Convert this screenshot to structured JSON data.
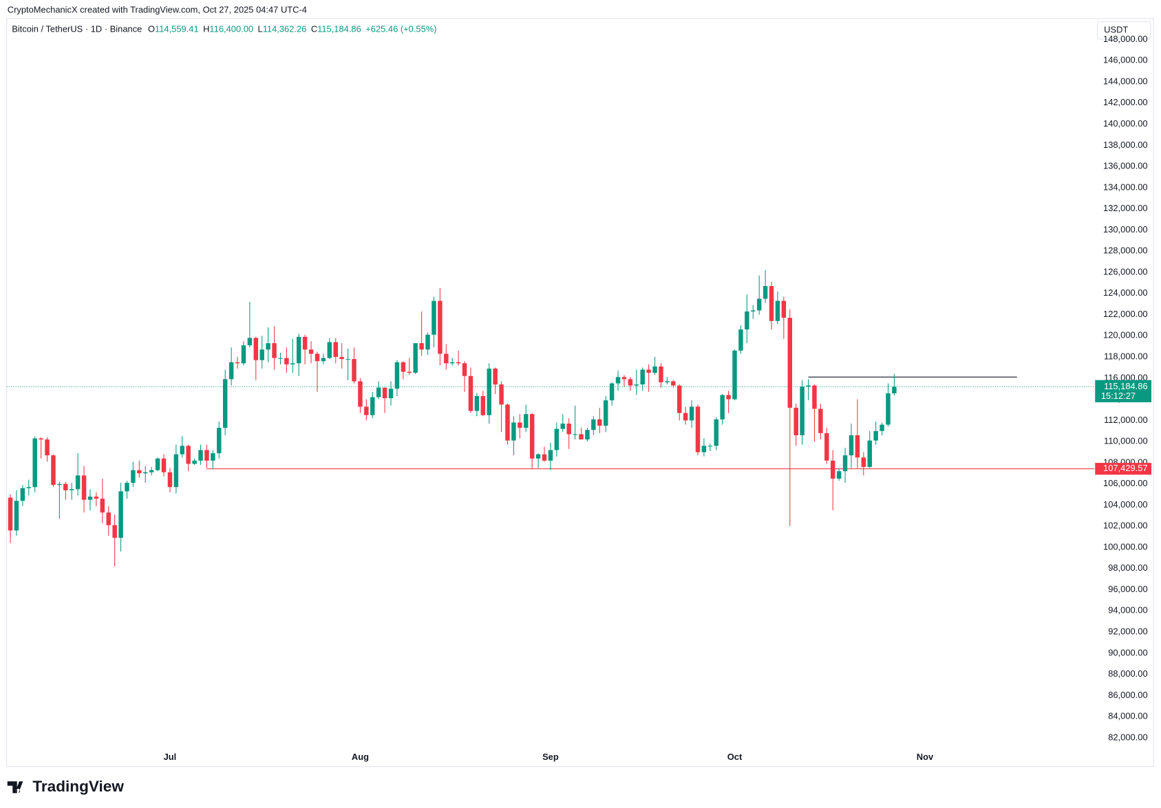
{
  "header": {
    "credit": "CryptoMechanicX created with TradingView.com, Oct 27, 2025 04:47 UTC-4",
    "symbol": "Bitcoin / TetherUS · 1D · Binance",
    "legend": [
      {
        "label": "O",
        "value": "114,559.41"
      },
      {
        "label": "H",
        "value": "116,400.00"
      },
      {
        "label": "L",
        "value": "114,362.26"
      },
      {
        "label": "C",
        "value": "115,184.86"
      }
    ],
    "change": "+625.46 (+0.55%)",
    "currency": "USDT"
  },
  "footer": {
    "brand": "TradingView"
  },
  "chart_data": {
    "type": "candlestick",
    "up_color": "#089981",
    "down_color": "#f23645",
    "xlim": [
      -0.6,
      176.6
    ],
    "xticks": [
      {
        "value": 26,
        "label": "Jul"
      },
      {
        "value": 57,
        "label": "Aug"
      },
      {
        "value": 88,
        "label": "Sep"
      },
      {
        "value": 118,
        "label": "Oct"
      },
      {
        "value": 149,
        "label": "Nov"
      }
    ],
    "ylim": [
      79287,
      149986
    ],
    "yticks": [
      {
        "value": 82000,
        "label": "82,000.00"
      },
      {
        "value": 84000,
        "label": "84,000.00"
      },
      {
        "value": 86000,
        "label": "86,000.00"
      },
      {
        "value": 88000,
        "label": "88,000.00"
      },
      {
        "value": 90000,
        "label": "90,000.00"
      },
      {
        "value": 92000,
        "label": "92,000.00"
      },
      {
        "value": 94000,
        "label": "94,000.00"
      },
      {
        "value": 96000,
        "label": "96,000.00"
      },
      {
        "value": 98000,
        "label": "98,000.00"
      },
      {
        "value": 100000,
        "label": "100,000.00"
      },
      {
        "value": 102000,
        "label": "102,000.00"
      },
      {
        "value": 104000,
        "label": "104,000.00"
      },
      {
        "value": 106000,
        "label": "106,000.00"
      },
      {
        "value": 108000,
        "label": "108,000.00"
      },
      {
        "value": 110000,
        "label": "110,000.00"
      },
      {
        "value": 112000,
        "label": "112,000.00"
      },
      {
        "value": 114000,
        "label": "114,000.00"
      },
      {
        "value": 116000,
        "label": "116,000.00"
      },
      {
        "value": 118000,
        "label": "118,000.00"
      },
      {
        "value": 120000,
        "label": "120,000.00"
      },
      {
        "value": 122000,
        "label": "122,000.00"
      },
      {
        "value": 124000,
        "label": "124,000.00"
      },
      {
        "value": 126000,
        "label": "126,000.00"
      },
      {
        "value": 128000,
        "label": "128,000.00"
      },
      {
        "value": 130000,
        "label": "130,000.00"
      },
      {
        "value": 132000,
        "label": "132,000.00"
      },
      {
        "value": 134000,
        "label": "134,000.00"
      },
      {
        "value": 136000,
        "label": "136,000.00"
      },
      {
        "value": 138000,
        "label": "138,000.00"
      },
      {
        "value": 140000,
        "label": "140,000.00"
      },
      {
        "value": 142000,
        "label": "142,000.00"
      },
      {
        "value": 144000,
        "label": "144,000.00"
      },
      {
        "value": 146000,
        "label": "146,000.00"
      },
      {
        "value": 148000,
        "label": "148,000.00"
      }
    ],
    "open": [
      104700,
      101600,
      104400,
      105600,
      105700,
      110300,
      110200,
      108700,
      105900,
      106000,
      105400,
      105500,
      106800,
      104500,
      104800,
      104600,
      103300,
      102100,
      100900,
      105300,
      106100,
      107300,
      107000,
      107100,
      107300,
      108400,
      107100,
      105700,
      108800,
      109600,
      107900,
      108200,
      109200,
      108200,
      108900,
      111300,
      115900,
      117500,
      117400,
      119100,
      119800,
      117700,
      118700,
      119300,
      117900,
      117900,
      117300,
      117400,
      119900,
      118700,
      118300,
      117600,
      117900,
      119400,
      118000,
      117800,
      117800,
      115700,
      113300,
      112500,
      114200,
      115100,
      114100,
      115000,
      117500,
      116600,
      116500,
      119300,
      118700,
      120100,
      123300,
      118300,
      117400,
      117500,
      117400,
      116200,
      112900,
      114300,
      112500,
      116900,
      115400,
      113500,
      110100,
      111800,
      111300,
      112600,
      108400,
      108800,
      108200,
      109200,
      111200,
      111700,
      110700,
      110700,
      110200,
      111100,
      112100,
      111500,
      113900,
      115500,
      116100,
      115900,
      115300,
      115400,
      116800,
      116500,
      117100,
      115600,
      115700,
      115300,
      112700,
      112000,
      113300,
      109000,
      109600,
      109600,
      112100,
      114400,
      114000,
      118600,
      120600,
      122300,
      122400,
      123500,
      124700,
      121400,
      123300,
      121700,
      113200,
      110600,
      115200,
      115300,
      113100,
      110800,
      108200,
      106500,
      107200,
      108700,
      110600,
      108500,
      107600,
      110100,
      111000,
      111600,
      114559.41
    ],
    "high": [
      105000,
      105400,
      105900,
      106400,
      110500,
      110400,
      110400,
      108800,
      106200,
      106200,
      106100,
      108900,
      107700,
      105500,
      105200,
      106500,
      103900,
      103100,
      106100,
      106300,
      108100,
      108200,
      107700,
      107600,
      108500,
      108800,
      107500,
      109700,
      110500,
      109700,
      108400,
      109700,
      109700,
      109200,
      111900,
      116800,
      118900,
      118000,
      119500,
      123200,
      119900,
      120000,
      120800,
      120900,
      118400,
      118900,
      119700,
      120200,
      120100,
      119500,
      118500,
      118300,
      119800,
      119800,
      119300,
      118800,
      118900,
      116000,
      114000,
      114700,
      115700,
      115100,
      115700,
      117700,
      117600,
      117900,
      119300,
      122300,
      120300,
      123700,
      124500,
      119200,
      117900,
      118600,
      117600,
      117000,
      114600,
      114800,
      117400,
      117000,
      115700,
      113600,
      112400,
      112600,
      113500,
      112700,
      108900,
      109500,
      109900,
      111800,
      112600,
      112200,
      113400,
      111300,
      111300,
      112400,
      113200,
      114300,
      115600,
      116700,
      116300,
      116100,
      116800,
      117000,
      117300,
      118000,
      117400,
      116100,
      115800,
      115400,
      113300,
      113900,
      113500,
      110300,
      109800,
      112300,
      114500,
      114800,
      118700,
      121000,
      123900,
      122900,
      125700,
      126200,
      125100,
      124200,
      123700,
      122500,
      113600,
      115800,
      115900,
      115400,
      113600,
      111300,
      109200,
      107500,
      109400,
      111700,
      114000,
      109000,
      111000,
      111900,
      111800,
      115500,
      116400
    ],
    "low": [
      100400,
      101100,
      103900,
      104900,
      105200,
      108400,
      108100,
      105700,
      102700,
      104500,
      104500,
      104900,
      103300,
      103500,
      103900,
      102300,
      101100,
      98200,
      99600,
      104600,
      105700,
      106600,
      106100,
      106800,
      107200,
      106700,
      105200,
      105100,
      108500,
      107200,
      107800,
      107800,
      107500,
      107400,
      108400,
      110600,
      115300,
      116900,
      117200,
      118900,
      115800,
      116900,
      117500,
      116800,
      117300,
      116500,
      116500,
      116200,
      117300,
      117400,
      114700,
      117300,
      117800,
      117400,
      116900,
      115800,
      115500,
      112700,
      112000,
      112200,
      114000,
      112700,
      113400,
      114300,
      115900,
      116300,
      116400,
      118100,
      118200,
      118900,
      117200,
      116800,
      117200,
      117200,
      114700,
      112700,
      112400,
      112400,
      111700,
      114500,
      110900,
      109700,
      108700,
      110300,
      110900,
      107400,
      107500,
      108100,
      107300,
      108600,
      110900,
      109300,
      110200,
      110200,
      110000,
      110600,
      110800,
      110900,
      113400,
      114800,
      115200,
      114800,
      114400,
      114800,
      114700,
      116300,
      115100,
      115400,
      115100,
      112000,
      111600,
      111300,
      108700,
      108600,
      109100,
      109200,
      111600,
      112700,
      113900,
      118300,
      119300,
      121600,
      122000,
      123100,
      120600,
      121100,
      119700,
      102000,
      109600,
      109700,
      113900,
      110000,
      110200,
      107900,
      103500,
      106300,
      106100,
      107500,
      107500,
      106800,
      107500,
      109700,
      110600,
      111400,
      114362.26
    ],
    "close": [
      101600,
      104400,
      105600,
      105700,
      110300,
      110200,
      108700,
      105900,
      106000,
      105400,
      105500,
      106800,
      104500,
      104800,
      104600,
      103300,
      102100,
      100900,
      105300,
      106100,
      107300,
      107000,
      107100,
      107300,
      108400,
      107100,
      105700,
      108800,
      109600,
      107900,
      108200,
      109200,
      108200,
      108900,
      111300,
      115900,
      117500,
      117400,
      119100,
      119800,
      117700,
      118700,
      119300,
      117900,
      117900,
      117300,
      117400,
      119900,
      118700,
      118300,
      117600,
      117900,
      119400,
      118000,
      117800,
      117800,
      115700,
      113300,
      112500,
      114200,
      115100,
      114100,
      115000,
      117500,
      116600,
      116500,
      119300,
      118700,
      120100,
      123300,
      118300,
      117400,
      117500,
      117400,
      116200,
      112900,
      114300,
      112500,
      116900,
      115400,
      113500,
      110100,
      111800,
      111300,
      112600,
      108400,
      108800,
      108200,
      109200,
      111200,
      111700,
      110700,
      110700,
      110200,
      111100,
      112100,
      111500,
      113900,
      115500,
      116100,
      115900,
      115300,
      115400,
      116800,
      116500,
      117100,
      115600,
      115700,
      115300,
      112700,
      112000,
      113300,
      109000,
      109600,
      109600,
      112100,
      114400,
      114000,
      118600,
      120600,
      122300,
      122400,
      123500,
      124700,
      121400,
      123300,
      121700,
      113200,
      110600,
      115200,
      115300,
      113100,
      110800,
      108200,
      106500,
      107200,
      108700,
      110600,
      108500,
      107600,
      110100,
      111000,
      111600,
      114559.41,
      115184.86
    ],
    "levels": [
      {
        "value": 107429.57,
        "label": "107,429.57",
        "color": "#f23645",
        "start": 32
      },
      {
        "value": 116100,
        "color": "#131722",
        "start": 130,
        "end": 164
      }
    ],
    "price_line": {
      "value": 115184.86,
      "label": "115,184.86",
      "countdown": "15:12:27",
      "color": "#089981"
    }
  }
}
